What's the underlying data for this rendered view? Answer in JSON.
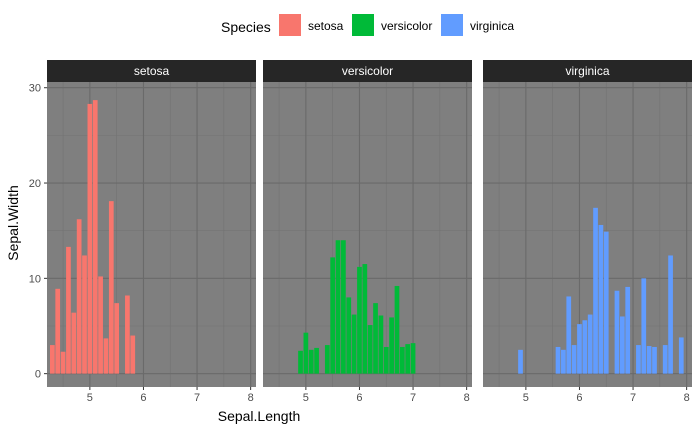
{
  "chart_data": {
    "type": "bar",
    "legend": {
      "title": "Species",
      "position": "top",
      "entries": [
        {
          "name": "setosa",
          "color": "#F8766D"
        },
        {
          "name": "versicolor",
          "color": "#00BA38"
        },
        {
          "name": "virginica",
          "color": "#619CFF"
        }
      ]
    },
    "xlabel": "Sepal.Length",
    "ylabel": "Sepal.Width",
    "xlim": [
      4.2,
      8.1
    ],
    "ylim": [
      -1.4,
      30.6
    ],
    "x_ticks": [
      5,
      6,
      7,
      8
    ],
    "y_ticks": [
      0,
      10,
      20,
      30
    ],
    "grid": true,
    "panel_background": "#7F7F7F",
    "strip_background": "#262626",
    "bar_width": 0.1,
    "panels": [
      {
        "title": "setosa",
        "color": "#F8766D",
        "x": [
          4.3,
          4.4,
          4.5,
          4.6,
          4.7,
          4.8,
          4.9,
          5.0,
          5.1,
          5.2,
          5.3,
          5.4,
          5.5,
          5.7,
          5.8
        ],
        "y": [
          3.0,
          8.9,
          2.3,
          13.3,
          6.4,
          16.2,
          12.4,
          28.3,
          28.7,
          10.2,
          3.7,
          18.1,
          7.4,
          8.2,
          4.0
        ]
      },
      {
        "title": "versicolor",
        "color": "#00BA38",
        "x": [
          4.9,
          5.0,
          5.1,
          5.2,
          5.4,
          5.5,
          5.6,
          5.7,
          5.8,
          5.9,
          6.0,
          6.1,
          6.2,
          6.3,
          6.4,
          6.5,
          6.6,
          6.7,
          6.8,
          6.9,
          7.0
        ],
        "y": [
          2.4,
          4.3,
          2.5,
          2.7,
          3.0,
          12.2,
          14.0,
          14.0,
          8.0,
          6.2,
          11.2,
          11.5,
          5.1,
          7.4,
          6.1,
          2.8,
          5.9,
          9.2,
          2.8,
          3.1,
          3.2
        ]
      },
      {
        "title": "virginica",
        "color": "#619CFF",
        "x": [
          4.9,
          5.6,
          5.7,
          5.8,
          5.9,
          6.0,
          6.1,
          6.2,
          6.3,
          6.4,
          6.5,
          6.7,
          6.8,
          6.9,
          7.1,
          7.2,
          7.3,
          7.4,
          7.6,
          7.7,
          7.9
        ],
        "y": [
          2.5,
          2.8,
          2.5,
          8.1,
          3.0,
          5.2,
          5.6,
          6.2,
          17.4,
          15.6,
          14.9,
          8.7,
          6.0,
          9.1,
          3.0,
          10.0,
          2.9,
          2.8,
          3.0,
          12.4,
          3.8
        ]
      }
    ]
  }
}
